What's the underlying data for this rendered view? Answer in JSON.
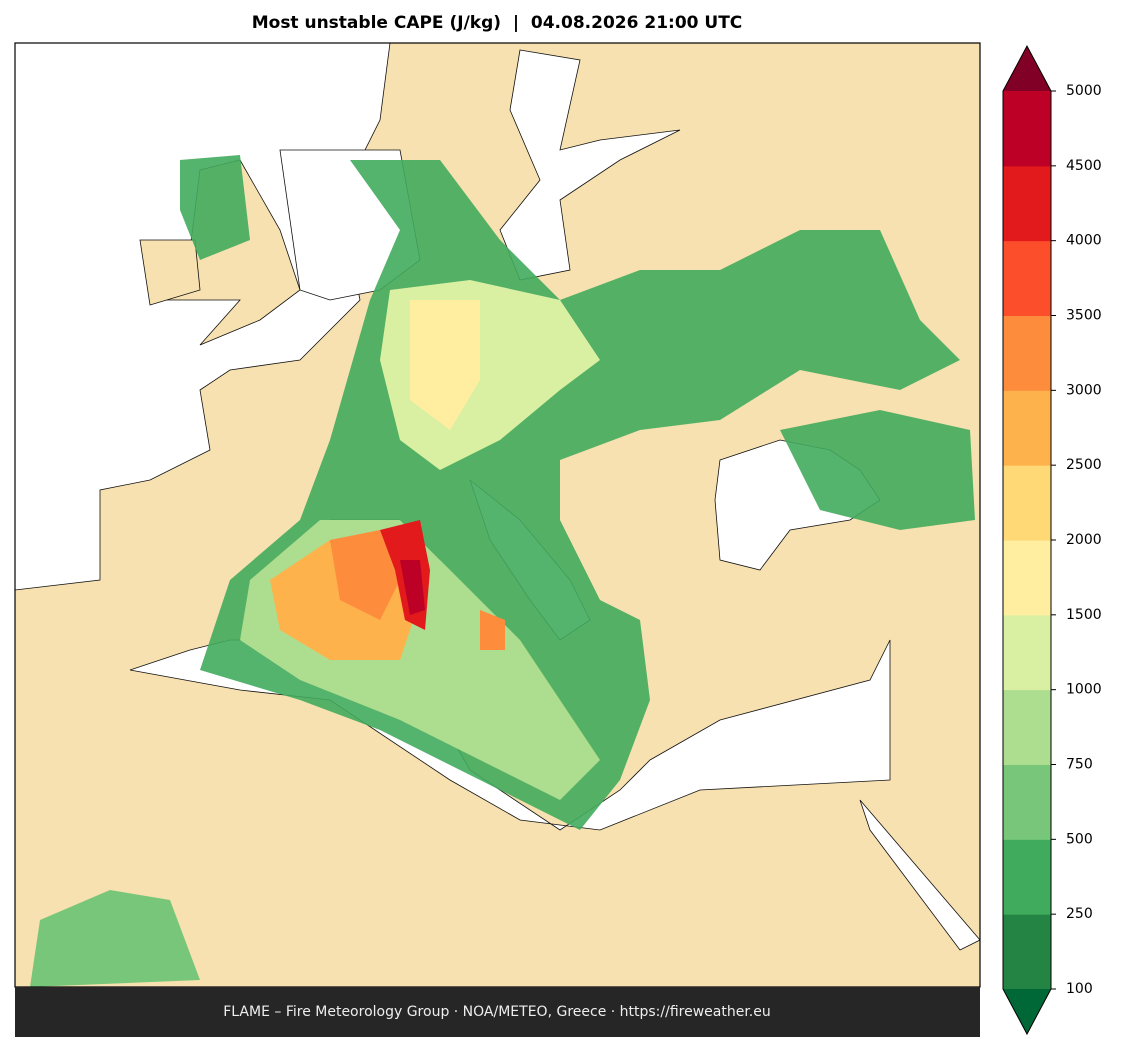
{
  "title": "Most unstable CAPE (J/kg)  |  04.08.2026 21:00 UTC",
  "footer": "FLAME – Fire Meteorology Group · NOA/METEO, Greece · https://fireweather.eu",
  "colorbar": {
    "levels": [
      100,
      250,
      500,
      750,
      1000,
      1500,
      2000,
      2500,
      3000,
      3500,
      4000,
      4500,
      5000
    ],
    "colors": [
      "#238443",
      "#41ab5d",
      "#78c679",
      "#addd8e",
      "#d9f0a3",
      "#ffeda0",
      "#fed976",
      "#feb24c",
      "#fd8d3c",
      "#fc4e2a",
      "#e31a1c",
      "#bd0026"
    ],
    "under_color": "#006837",
    "over_color": "#800026"
  }
}
